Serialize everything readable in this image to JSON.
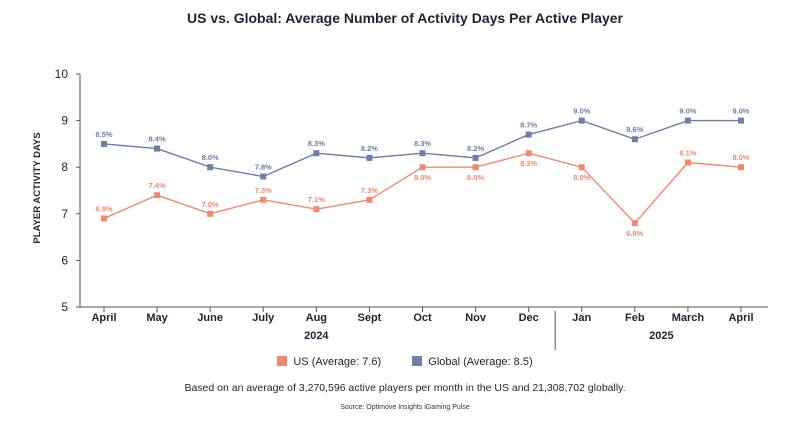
{
  "chart_data": {
    "type": "line",
    "title": "US vs. Global: Average Number of Activity Days Per Active Player",
    "ylabel": "PLAYER ACTIVITY DAYS",
    "xlabel": "",
    "ylim": [
      5,
      10
    ],
    "yticks": [
      "5",
      "6",
      "7",
      "8",
      "9",
      "10"
    ],
    "categories": [
      "April",
      "May",
      "June",
      "July",
      "Aug",
      "Sept",
      "Oct",
      "Nov",
      "Dec",
      "Jan",
      "Feb",
      "March",
      "April"
    ],
    "year_groups": [
      {
        "label": "2024",
        "start": 0,
        "end": 8
      },
      {
        "label": "2025",
        "start": 9,
        "end": 12
      }
    ],
    "grid": false,
    "legend_position": "bottom",
    "series": [
      {
        "name": "Global (Average: 8.5)",
        "color": "#6c7fa8",
        "values": [
          8.5,
          8.4,
          8.0,
          7.8,
          8.3,
          8.2,
          8.3,
          8.2,
          8.7,
          9.0,
          8.6,
          9.0,
          9.0
        ],
        "labels": [
          "8.5%",
          "8.4%",
          "8.0%",
          "7.8%",
          "8.3%",
          "8.2%",
          "8.3%",
          "8.2%",
          "8.7%",
          "9.0%",
          "8.6%",
          "9.0%",
          "9.0%"
        ],
        "label_side": [
          "above",
          "above",
          "above",
          "above",
          "above",
          "above",
          "above",
          "above",
          "above",
          "above",
          "above",
          "above",
          "above"
        ]
      },
      {
        "name": "US (Average: 7.6)",
        "color": "#f08a6c",
        "values": [
          6.9,
          7.4,
          7.0,
          7.3,
          7.1,
          7.3,
          8.0,
          8.0,
          8.3,
          8.0,
          6.8,
          8.1,
          8.0
        ],
        "labels": [
          "6.9%",
          "7.4%",
          "7.0%",
          "7.3%",
          "7.1%",
          "7.3%",
          "8.0%",
          "8.0%",
          "8.3%",
          "8.0%",
          "6.8%",
          "8.1%",
          "8.0%"
        ],
        "label_side": [
          "above",
          "above",
          "above",
          "above",
          "above",
          "above",
          "below",
          "below",
          "below",
          "below",
          "below",
          "above",
          "above"
        ]
      }
    ],
    "legend": [
      {
        "label": "US (Average: 7.6)",
        "color": "#f08a6c"
      },
      {
        "label": "Global (Average: 8.5)",
        "color": "#6c7fa8"
      }
    ]
  },
  "footer": {
    "note": "Based on an average of 3,270,596 active players per month in the US and 21,308,702 globally.",
    "source": "Source: Optimove Insights iGaming Pulse"
  }
}
